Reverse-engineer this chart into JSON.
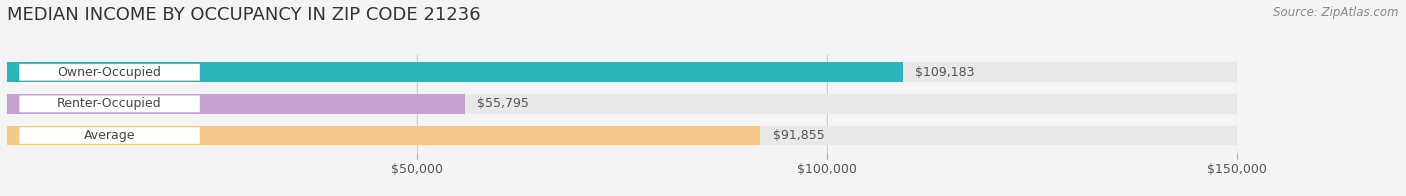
{
  "title": "MEDIAN INCOME BY OCCUPANCY IN ZIP CODE 21236",
  "source": "Source: ZipAtlas.com",
  "categories": [
    "Owner-Occupied",
    "Renter-Occupied",
    "Average"
  ],
  "values": [
    109183,
    55795,
    91855
  ],
  "bar_colors": [
    "#2bb5b8",
    "#c4a0d0",
    "#f5c98a"
  ],
  "bar_labels": [
    "$109,183",
    "$55,795",
    "$91,855"
  ],
  "xlim": [
    0,
    150000
  ],
  "xticks": [
    50000,
    100000,
    150000
  ],
  "xtick_labels": [
    "$50,000",
    "$100,000",
    "$150,000"
  ],
  "bg_color": "#f4f4f4",
  "bar_bg_color": "#e8e8e8",
  "title_fontsize": 13,
  "label_fontsize": 9,
  "value_fontsize": 9,
  "source_fontsize": 8.5,
  "bar_height": 0.62,
  "bar_gap": 0.15
}
